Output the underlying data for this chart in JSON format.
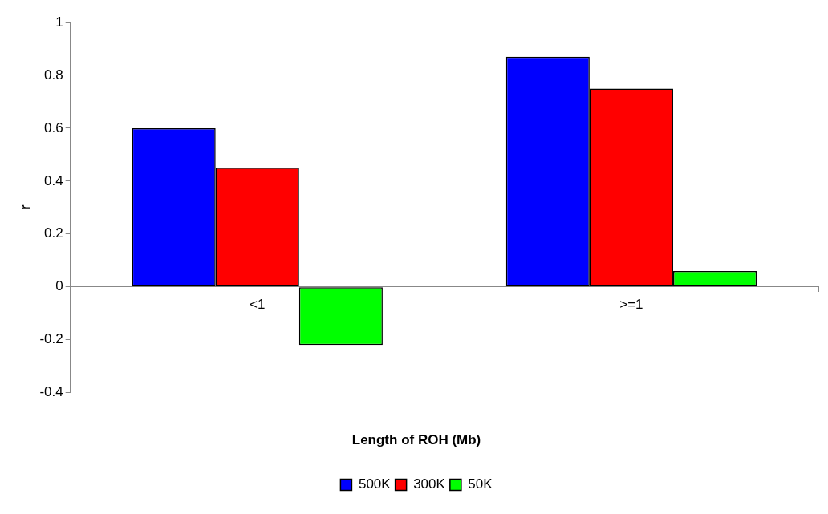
{
  "chart_data": {
    "type": "bar",
    "xlabel": "Length of ROH (Mb)",
    "ylabel": "r",
    "categories": [
      "<1",
      ">=1"
    ],
    "series": [
      {
        "name": "500K",
        "color": "#0000ff",
        "values": [
          0.6,
          0.87
        ]
      },
      {
        "name": "300K",
        "color": "#ff0000",
        "values": [
          0.45,
          0.75
        ]
      },
      {
        "name": "50K",
        "color": "#00ff00",
        "values": [
          -0.22,
          0.06
        ]
      }
    ],
    "ylim": [
      -0.4,
      1
    ],
    "yticks": [
      -0.4,
      -0.2,
      0,
      0.2,
      0.4,
      0.6,
      0.8,
      1
    ],
    "grid": false,
    "legend": "bottom"
  }
}
